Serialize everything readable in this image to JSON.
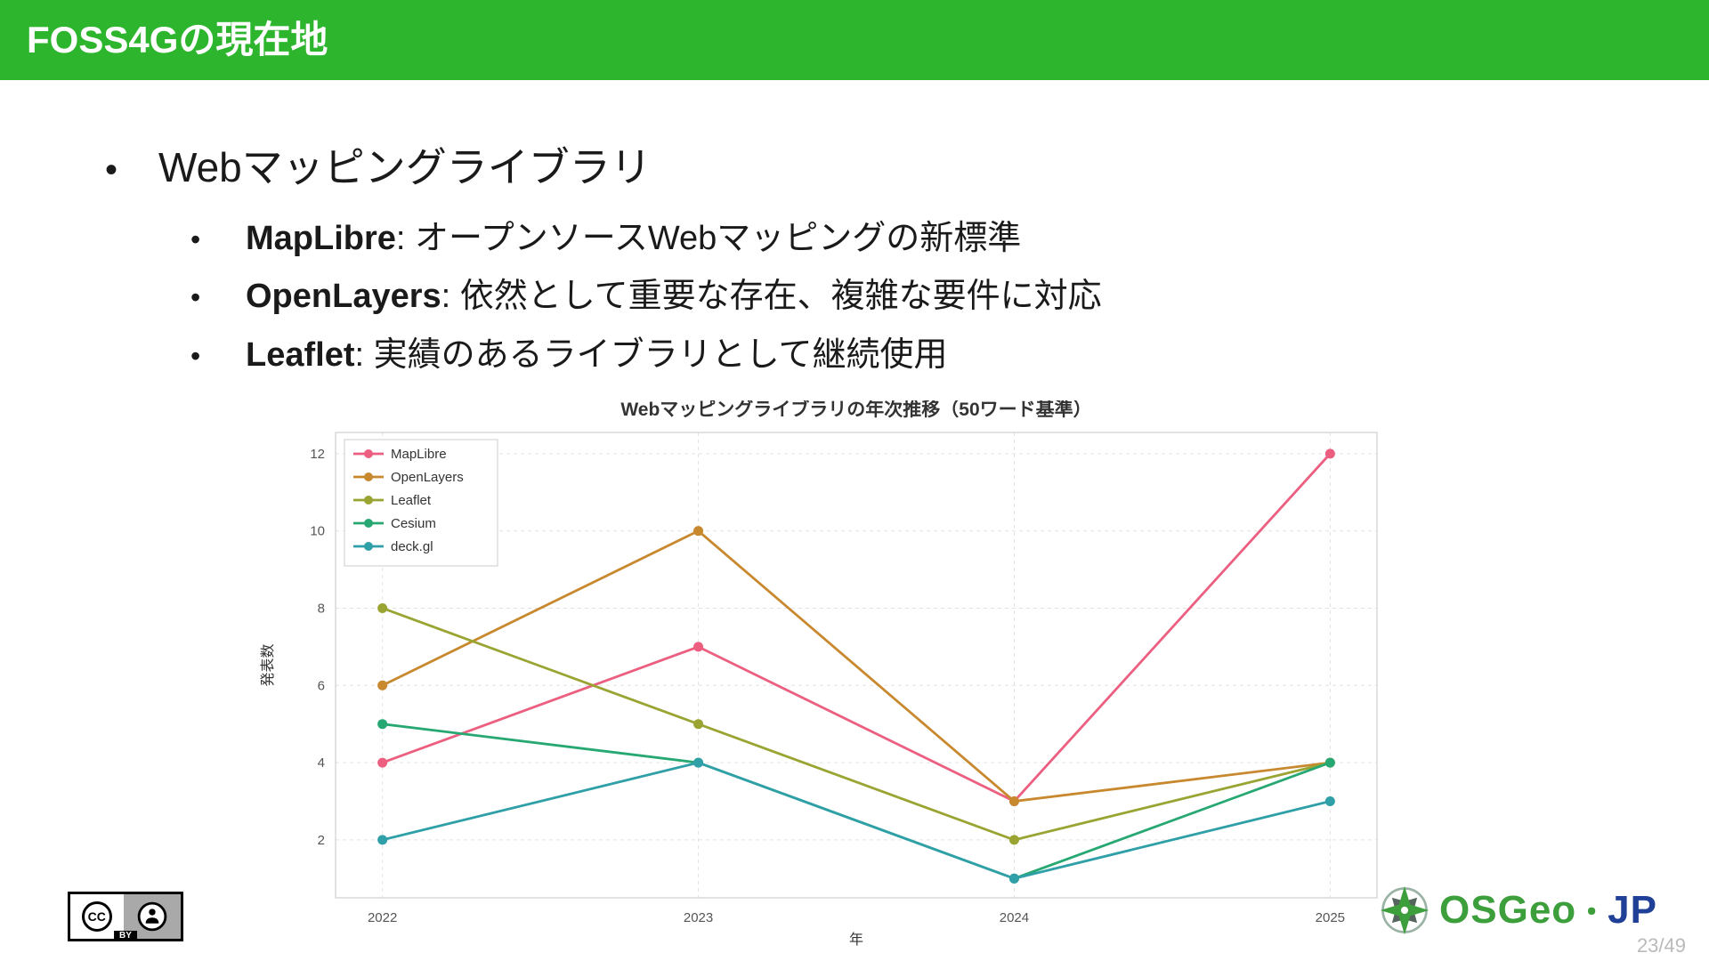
{
  "header": {
    "title": "FOSS4Gの現在地"
  },
  "bullets": {
    "main": "Webマッピングライブラリ",
    "items": [
      {
        "name": "MapLibre",
        "desc": ": オープンソースWebマッピングの新標準"
      },
      {
        "name": "OpenLayers",
        "desc": ": 依然として重要な存在、複雑な要件に対応"
      },
      {
        "name": "Leaflet",
        "desc": ": 実績のあるライブラリとして継続使用"
      }
    ]
  },
  "chart_data": {
    "type": "line",
    "title": "Webマッピングライブラリの年次推移（50ワード基準）",
    "xlabel": "年",
    "ylabel": "発表数",
    "x": [
      "2022",
      "2023",
      "2024",
      "2025"
    ],
    "yticks": [
      2,
      4,
      6,
      8,
      10,
      12
    ],
    "ylim": [
      0.5,
      12.55
    ],
    "grid": true,
    "legend_position": "upper left",
    "series": [
      {
        "name": "MapLibre",
        "color": "#ec5f80",
        "values": [
          4,
          7,
          3,
          12
        ]
      },
      {
        "name": "OpenLayers",
        "color": "#c8882e",
        "values": [
          6,
          10,
          3,
          4
        ]
      },
      {
        "name": "Leaflet",
        "color": "#9aa433",
        "values": [
          8,
          5,
          2,
          4
        ]
      },
      {
        "name": "Cesium",
        "color": "#27a873",
        "values": [
          5,
          4,
          1,
          4
        ]
      },
      {
        "name": "deck.gl",
        "color": "#2f9fa8",
        "values": [
          2,
          4,
          1,
          3
        ]
      }
    ]
  },
  "footer": {
    "cc_badge": {
      "cc": "CC",
      "by": "BY"
    },
    "logo": {
      "name_green": "OSGeo",
      "separator": "・",
      "name_blue": "JP"
    },
    "page_number": "23/49"
  }
}
